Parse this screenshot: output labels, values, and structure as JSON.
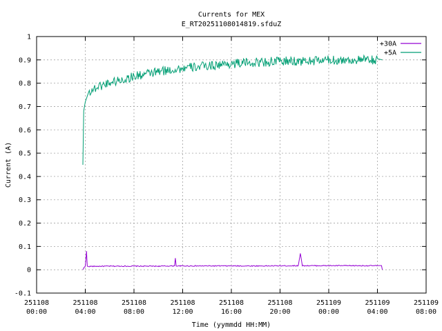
{
  "chart_data": {
    "type": "line",
    "title": "Currents for MEX",
    "subtitle": "E_RT20251108014819.sfduZ",
    "xlabel": "Time (yymmdd HH:MM)",
    "ylabel": "Current (A)",
    "ylim": [
      -0.1,
      1.0
    ],
    "yticks": [
      "-0.1",
      "0",
      "0.1",
      "0.2",
      "0.3",
      "0.4",
      "0.5",
      "0.6",
      "0.7",
      "0.8",
      "0.9",
      "1"
    ],
    "xlim": [
      "251108 00:00",
      "251109 08:00"
    ],
    "xticks": [
      {
        "date": "251108",
        "time": "00:00"
      },
      {
        "date": "251108",
        "time": "04:00"
      },
      {
        "date": "251108",
        "time": "08:00"
      },
      {
        "date": "251108",
        "time": "12:00"
      },
      {
        "date": "251108",
        "time": "16:00"
      },
      {
        "date": "251108",
        "time": "20:00"
      },
      {
        "date": "251109",
        "time": "00:00"
      },
      {
        "date": "251109",
        "time": "04:00"
      },
      {
        "date": "251109",
        "time": "08:00"
      }
    ],
    "grid": true,
    "legend_position": "top-right",
    "series": [
      {
        "name": "+30A",
        "color": "#9400d3",
        "points": [
          [
            "251108 03:48",
            0.0
          ],
          [
            "251108 03:54",
            0.01
          ],
          [
            "251108 04:00",
            0.015
          ],
          [
            "251108 04:06",
            0.08
          ],
          [
            "251108 04:10",
            0.015
          ],
          [
            "251108 06:00",
            0.016
          ],
          [
            "251108 08:00",
            0.016
          ],
          [
            "251108 10:00",
            0.016
          ],
          [
            "251108 11:20",
            0.017
          ],
          [
            "251108 11:24",
            0.05
          ],
          [
            "251108 11:28",
            0.017
          ],
          [
            "251108 14:00",
            0.017
          ],
          [
            "251108 16:00",
            0.017
          ],
          [
            "251108 19:00",
            0.017
          ],
          [
            "251108 21:30",
            0.018
          ],
          [
            "251108 21:40",
            0.07
          ],
          [
            "251108 21:50",
            0.018
          ],
          [
            "251109 00:00",
            0.018
          ],
          [
            "251109 02:00",
            0.018
          ],
          [
            "251109 04:00",
            0.018
          ],
          [
            "251109 04:20",
            0.018
          ],
          [
            "251109 04:24",
            0.0
          ]
        ]
      },
      {
        "name": "+5A",
        "color": "#009e73",
        "points": [
          [
            "251108 03:48",
            0.45
          ],
          [
            "251108 03:52",
            0.68
          ],
          [
            "251108 04:00",
            0.72
          ],
          [
            "251108 04:20",
            0.77
          ],
          [
            "251108 05:00",
            0.79
          ],
          [
            "251108 06:00",
            0.81
          ],
          [
            "251108 07:00",
            0.82
          ],
          [
            "251108 08:00",
            0.835
          ],
          [
            "251108 10:00",
            0.855
          ],
          [
            "251108 12:00",
            0.87
          ],
          [
            "251108 14:00",
            0.88
          ],
          [
            "251108 16:00",
            0.89
          ],
          [
            "251108 18:00",
            0.895
          ],
          [
            "251108 20:00",
            0.9
          ],
          [
            "251108 22:00",
            0.9
          ],
          [
            "251109 00:00",
            0.905
          ],
          [
            "251109 02:00",
            0.905
          ],
          [
            "251109 04:00",
            0.905
          ],
          [
            "251109 04:24",
            0.9
          ]
        ]
      }
    ]
  }
}
